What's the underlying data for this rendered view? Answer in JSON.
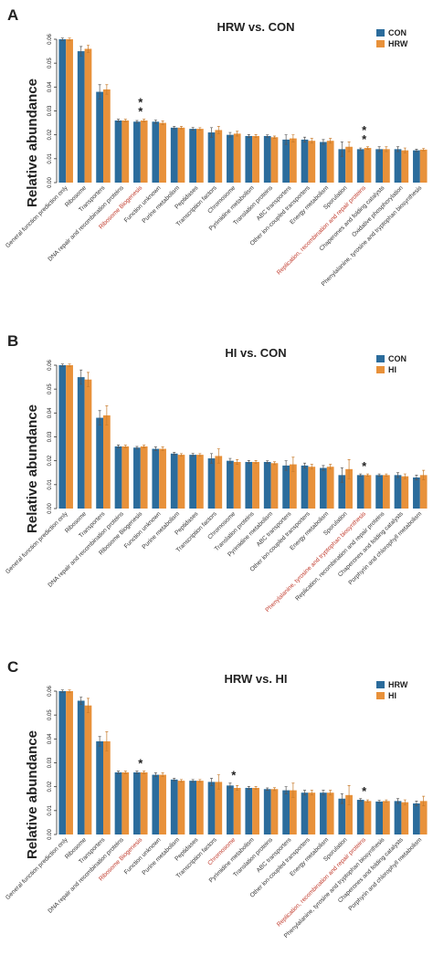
{
  "chart_data": [
    {
      "type": "bar",
      "panel": "A",
      "title": "HRW vs. CON",
      "y_label": "Relative abundance",
      "categories": [
        "General function prediction only",
        "Ribosome",
        "Transporters",
        "DNA repair and recombination proteins",
        "Ribosome Biogenesis",
        "Function unknown",
        "Purine metabolism",
        "Peptidases",
        "Transcription factors",
        "Chromosome",
        "Pyrimidine metabolism",
        "Translation proteins",
        "ABC transporters",
        "Other ion-coupled transporters",
        "Energy metabolism",
        "Sporulation",
        "Replication, recombination and repair proteins",
        "Chaperones and folding catalysts",
        "Oxidative phosphorylation",
        "Phenylalanine, tyrosine and tryptophan biosynthesis"
      ],
      "category_colors": [
        "#333",
        "#333",
        "#333",
        "#333",
        "#c0392b",
        "#333",
        "#333",
        "#333",
        "#333",
        "#333",
        "#333",
        "#333",
        "#333",
        "#333",
        "#333",
        "#333",
        "#c0392b",
        "#333",
        "#333",
        "#333"
      ],
      "series": [
        {
          "name": "CON",
          "color": "#2b6c9c",
          "values": [
            0.06,
            0.055,
            0.038,
            0.026,
            0.0255,
            0.0255,
            0.023,
            0.0225,
            0.021,
            0.02,
            0.0195,
            0.0195,
            0.018,
            0.018,
            0.017,
            0.014,
            0.014,
            0.014,
            0.014,
            0.0135
          ],
          "errors": [
            0.0005,
            0.002,
            0.003,
            0.0005,
            0.0005,
            0.0007,
            0.0005,
            0.0006,
            0.002,
            0.001,
            0.0006,
            0.0005,
            0.002,
            0.001,
            0.001,
            0.003,
            0.0005,
            0.001,
            0.001,
            0.0005
          ]
        },
        {
          "name": "HRW",
          "color": "#e8913a",
          "values": [
            0.06,
            0.056,
            0.039,
            0.026,
            0.026,
            0.025,
            0.023,
            0.0225,
            0.022,
            0.0205,
            0.0195,
            0.019,
            0.0185,
            0.0175,
            0.0175,
            0.015,
            0.0145,
            0.014,
            0.0135,
            0.0138
          ],
          "errors": [
            0.0005,
            0.0015,
            0.002,
            0.0005,
            0.0005,
            0.0008,
            0.0005,
            0.0005,
            0.0015,
            0.001,
            0.0006,
            0.0005,
            0.0015,
            0.001,
            0.001,
            0.002,
            0.0005,
            0.001,
            0.001,
            0.0005
          ]
        }
      ],
      "annotations": [
        {
          "text": "*",
          "x": "Ribosome Biogenesis"
        },
        {
          "text": "*",
          "x": "Ribosome Biogenesis"
        },
        {
          "text": "*",
          "x": "Replication, recombination and repair proteins"
        },
        {
          "text": "*",
          "x": "Replication, recombination and repair proteins"
        }
      ],
      "ylim": [
        0,
        0.06
      ],
      "yticks": [
        {
          "value": 0,
          "label": "0.00"
        },
        0.01,
        0.02,
        0.03,
        0.04,
        0.05,
        0.06
      ],
      "legend": "upper right"
    },
    {
      "type": "bar",
      "panel": "B",
      "title": "HI vs. CON",
      "y_label": "Relative abundance",
      "categories": [
        "General function prediction only",
        "Ribosome",
        "Transporters",
        "DNA repair and recombination proteins",
        "Ribosome Biogenesis",
        "Function unknown",
        "Purine metabolism",
        "Peptidases",
        "Transcription factors",
        "Chromosome",
        "Translation proteins",
        "Pyrimidine metabolism",
        "ABC transporters",
        "Other ion-coupled transporters",
        "Energy metabolism",
        "Sporulation",
        "Phenylalanine, tyrosine and tryptophan biosynthesis",
        "Replication, recombination and repair proteins",
        "Chaperones and folding catalysts",
        "Porphyrin and chlorophyll metabolism"
      ],
      "category_colors": [
        "#333",
        "#333",
        "#333",
        "#333",
        "#333",
        "#333",
        "#333",
        "#333",
        "#333",
        "#333",
        "#333",
        "#333",
        "#333",
        "#333",
        "#333",
        "#333",
        "#c0392b",
        "#333",
        "#333",
        "#333"
      ],
      "series": [
        {
          "name": "CON",
          "color": "#2b6c9c",
          "values": [
            0.06,
            0.055,
            0.038,
            0.026,
            0.0255,
            0.025,
            0.023,
            0.0225,
            0.021,
            0.02,
            0.0195,
            0.0195,
            0.018,
            0.018,
            0.017,
            0.014,
            0.014,
            0.014,
            0.014,
            0.013
          ],
          "errors": [
            0.0005,
            0.003,
            0.003,
            0.0006,
            0.0005,
            0.0008,
            0.0005,
            0.0006,
            0.002,
            0.001,
            0.0006,
            0.0005,
            0.002,
            0.001,
            0.001,
            0.003,
            0.0005,
            0.0005,
            0.001,
            0.001
          ]
        },
        {
          "name": "HI",
          "color": "#e8913a",
          "values": [
            0.06,
            0.054,
            0.039,
            0.026,
            0.026,
            0.025,
            0.0225,
            0.0225,
            0.022,
            0.0195,
            0.0195,
            0.019,
            0.0185,
            0.0175,
            0.0175,
            0.0165,
            0.014,
            0.014,
            0.0135,
            0.014
          ],
          "errors": [
            0.0005,
            0.003,
            0.004,
            0.0005,
            0.0005,
            0.0008,
            0.0005,
            0.0005,
            0.003,
            0.001,
            0.0006,
            0.0006,
            0.003,
            0.001,
            0.001,
            0.004,
            0.0005,
            0.0005,
            0.001,
            0.002
          ]
        }
      ],
      "annotations": [
        {
          "text": "*",
          "x": "Phenylalanine, tyrosine and tryptophan biosynthesis"
        }
      ],
      "ylim": [
        0,
        0.06
      ],
      "yticks": [
        {
          "value": 0,
          "label": "0.00"
        },
        0.01,
        0.02,
        0.03,
        0.04,
        0.05,
        0.06
      ],
      "legend": "upper right"
    },
    {
      "type": "bar",
      "panel": "C",
      "title": "HRW vs. HI",
      "y_label": "Relative abundance",
      "categories": [
        "General function prediction only",
        "Ribosome",
        "Transporters",
        "DNA repair and recombination proteins",
        "Ribosome Biogenesis",
        "Function unknown",
        "Purine metabolism",
        "Peptidases",
        "Transcription factors",
        "Chromosome",
        "Pyrimidine metabolism",
        "Translation proteins",
        "ABC transporters",
        "Other ion-coupled transporters",
        "Energy metabolism",
        "Sporulation",
        "Replication, recombination and repair proteins",
        "Phenylalanine, tyrosine and tryptophan biosynthesis",
        "Chaperones and folding catalysts",
        "Porphyrin and chlorophyll metabolism"
      ],
      "category_colors": [
        "#333",
        "#333",
        "#333",
        "#333",
        "#c0392b",
        "#333",
        "#333",
        "#333",
        "#333",
        "#c0392b",
        "#333",
        "#333",
        "#333",
        "#333",
        "#333",
        "#333",
        "#c0392b",
        "#333",
        "#333",
        "#333"
      ],
      "series": [
        {
          "name": "HRW",
          "color": "#2b6c9c",
          "values": [
            0.06,
            0.056,
            0.039,
            0.026,
            0.026,
            0.025,
            0.023,
            0.0225,
            0.022,
            0.0205,
            0.0195,
            0.019,
            0.0185,
            0.0175,
            0.0175,
            0.015,
            0.0145,
            0.0138,
            0.014,
            0.013
          ],
          "errors": [
            0.0005,
            0.0015,
            0.002,
            0.0005,
            0.0005,
            0.0008,
            0.0005,
            0.0005,
            0.0015,
            0.001,
            0.0006,
            0.0005,
            0.0015,
            0.001,
            0.001,
            0.002,
            0.0005,
            0.0005,
            0.001,
            0.001
          ]
        },
        {
          "name": "HI",
          "color": "#e8913a",
          "values": [
            0.06,
            0.054,
            0.039,
            0.026,
            0.026,
            0.025,
            0.0225,
            0.0225,
            0.022,
            0.0195,
            0.0195,
            0.019,
            0.0185,
            0.0175,
            0.0175,
            0.0165,
            0.014,
            0.014,
            0.0135,
            0.014
          ],
          "errors": [
            0.0005,
            0.003,
            0.004,
            0.0005,
            0.0005,
            0.0008,
            0.0005,
            0.0005,
            0.003,
            0.001,
            0.0006,
            0.0006,
            0.003,
            0.001,
            0.001,
            0.004,
            0.0005,
            0.0005,
            0.001,
            0.002
          ]
        }
      ],
      "annotations": [
        {
          "text": "*",
          "x": "Ribosome Biogenesis"
        },
        {
          "text": "*",
          "x": "Chromosome"
        },
        {
          "text": "*",
          "x": "Replication, recombination and repair proteins"
        }
      ],
      "ylim": [
        0,
        0.06
      ],
      "yticks": [
        {
          "value": 0,
          "label": "0.00"
        },
        0.01,
        0.02,
        0.03,
        0.04,
        0.05,
        0.06
      ],
      "legend": "upper right"
    }
  ]
}
